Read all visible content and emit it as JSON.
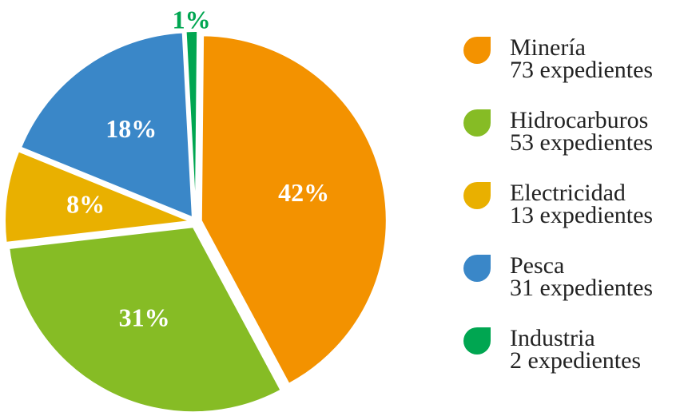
{
  "chart_data": {
    "type": "pie",
    "categories": [
      "Minería",
      "Hidrocarburos",
      "Electricidad",
      "Pesca",
      "Industria"
    ],
    "values": [
      42,
      31,
      8,
      18,
      1
    ],
    "value_labels": [
      "42%",
      "31%",
      "8%",
      "18%",
      "1%"
    ],
    "colors": [
      "#f39200",
      "#86bc25",
      "#e9b000",
      "#3a87c8",
      "#00a651"
    ],
    "legend_details": [
      "73 expedientes",
      "53 expedientes",
      "13 expedientes",
      "31 expedientes",
      "2 expedientes"
    ],
    "legend": "right"
  }
}
